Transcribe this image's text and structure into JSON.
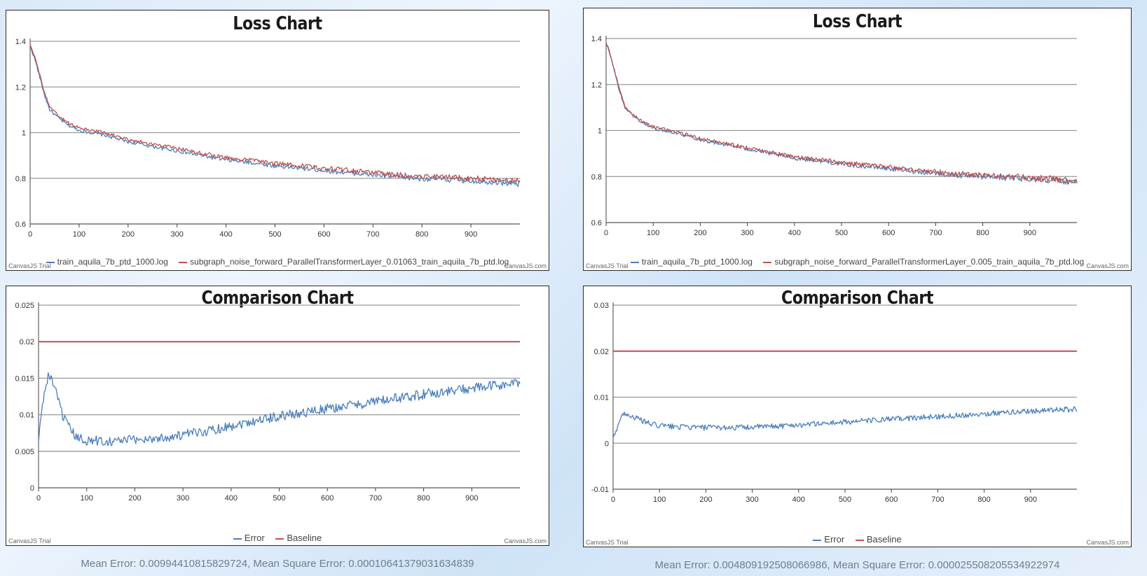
{
  "colors": {
    "blue": "#4a7ebb",
    "red": "#c0504d"
  },
  "panels": {
    "tl": {
      "title": "Loss Chart",
      "legend": [
        {
          "label": "train_aquila_7b_ptd_1000.log",
          "color": "#4a7ebb"
        },
        {
          "label": "subgraph_noise_forward_ParallelTransformerLayer_0.01063_train_aquila_7b_ptd.log",
          "color": "#c0504d"
        }
      ],
      "credit_left": "CanvasJS Trial",
      "credit_right": "CanvasJS.com"
    },
    "tr": {
      "title": "Loss Chart",
      "legend": [
        {
          "label": "train_aquila_7b_ptd_1000.log",
          "color": "#4a7ebb"
        },
        {
          "label": "subgraph_noise_forward_ParallelTransformerLayer_0.005_train_aquila_7b_ptd.log",
          "color": "#c0504d"
        }
      ],
      "credit_left": "CanvasJS Trial",
      "credit_right": "CanvasJS.com"
    },
    "bl": {
      "title": "Comparison Chart",
      "legend": [
        {
          "label": "Error",
          "color": "#4a7ebb"
        },
        {
          "label": "Baseline",
          "color": "#c0504d"
        }
      ],
      "credit_left": "CanvasJS Trial",
      "credit_right": "CanvasJS.com",
      "stats": "Mean Error: 0.00994410815829724, Mean Square Error: 0.00010641379031634839"
    },
    "br": {
      "title": "Comparison Chart",
      "legend": [
        {
          "label": "Error",
          "color": "#4a7ebb"
        },
        {
          "label": "Baseline",
          "color": "#c0504d"
        }
      ],
      "credit_left": "CanvasJS Trial",
      "credit_right": "CanvasJS.com",
      "stats": "Mean Error: 0.004809192508066986, Mean Square Error: 0.000025508205534922974"
    }
  },
  "chart_data": [
    {
      "id": "tl",
      "type": "line",
      "title": "Loss Chart",
      "xlim": [
        0,
        1000
      ],
      "ylim": [
        0.6,
        1.4
      ],
      "xticks": [
        0,
        100,
        200,
        300,
        400,
        500,
        600,
        700,
        800,
        900
      ],
      "yticks": [
        0.6,
        0.8,
        1,
        1.2,
        1.4
      ],
      "grid": true,
      "legend": "bottom",
      "series": [
        {
          "name": "train_aquila_7b_ptd_1000.log",
          "color": "#4a7ebb",
          "x": [
            0,
            10,
            20,
            30,
            40,
            60,
            80,
            100,
            150,
            200,
            250,
            300,
            350,
            400,
            450,
            500,
            550,
            600,
            650,
            700,
            750,
            800,
            850,
            900,
            950,
            1000
          ],
          "y": [
            1.38,
            1.32,
            1.24,
            1.16,
            1.1,
            1.06,
            1.03,
            1.01,
            0.99,
            0.96,
            0.94,
            0.92,
            0.9,
            0.88,
            0.87,
            0.855,
            0.845,
            0.835,
            0.825,
            0.815,
            0.805,
            0.8,
            0.795,
            0.79,
            0.785,
            0.775
          ]
        },
        {
          "name": "subgraph_noise_forward_ParallelTransformerLayer_0.01063_train_aquila_7b_ptd.log",
          "color": "#c0504d",
          "x": [
            0,
            10,
            20,
            30,
            40,
            60,
            80,
            100,
            150,
            200,
            250,
            300,
            350,
            400,
            450,
            500,
            550,
            600,
            650,
            700,
            750,
            800,
            850,
            900,
            950,
            1000
          ],
          "y": [
            1.39,
            1.33,
            1.25,
            1.17,
            1.11,
            1.07,
            1.04,
            1.02,
            1.0,
            0.97,
            0.95,
            0.93,
            0.91,
            0.89,
            0.88,
            0.865,
            0.855,
            0.845,
            0.835,
            0.825,
            0.815,
            0.81,
            0.805,
            0.8,
            0.795,
            0.785
          ]
        }
      ]
    },
    {
      "id": "tr",
      "type": "line",
      "title": "Loss Chart",
      "xlim": [
        0,
        1000
      ],
      "ylim": [
        0.6,
        1.4
      ],
      "xticks": [
        0,
        100,
        200,
        300,
        400,
        500,
        600,
        700,
        800,
        900
      ],
      "yticks": [
        0.6,
        0.8,
        1,
        1.2,
        1.4
      ],
      "grid": true,
      "legend": "bottom",
      "series": [
        {
          "name": "train_aquila_7b_ptd_1000.log",
          "color": "#4a7ebb",
          "x": [
            0,
            10,
            20,
            30,
            40,
            60,
            80,
            100,
            150,
            200,
            250,
            300,
            350,
            400,
            450,
            500,
            550,
            600,
            650,
            700,
            750,
            800,
            850,
            900,
            950,
            1000
          ],
          "y": [
            1.38,
            1.32,
            1.24,
            1.16,
            1.1,
            1.06,
            1.03,
            1.01,
            0.99,
            0.96,
            0.94,
            0.92,
            0.9,
            0.88,
            0.87,
            0.855,
            0.845,
            0.835,
            0.825,
            0.815,
            0.805,
            0.8,
            0.795,
            0.79,
            0.785,
            0.775
          ]
        },
        {
          "name": "subgraph_noise_forward_ParallelTransformerLayer_0.005_train_aquila_7b_ptd.log",
          "color": "#c0504d",
          "x": [
            0,
            10,
            20,
            30,
            40,
            60,
            80,
            100,
            150,
            200,
            250,
            300,
            350,
            400,
            450,
            500,
            550,
            600,
            650,
            700,
            750,
            800,
            850,
            900,
            950,
            1000
          ],
          "y": [
            1.385,
            1.325,
            1.245,
            1.165,
            1.105,
            1.065,
            1.035,
            1.015,
            0.995,
            0.965,
            0.945,
            0.925,
            0.905,
            0.885,
            0.875,
            0.86,
            0.85,
            0.84,
            0.83,
            0.82,
            0.81,
            0.805,
            0.8,
            0.795,
            0.79,
            0.78
          ]
        }
      ]
    },
    {
      "id": "bl",
      "type": "line",
      "title": "Comparison Chart",
      "xlim": [
        0,
        1000
      ],
      "ylim": [
        0,
        0.025
      ],
      "xticks": [
        0,
        100,
        200,
        300,
        400,
        500,
        600,
        700,
        800,
        900
      ],
      "yticks": [
        0,
        0.005,
        0.01,
        0.015,
        0.02,
        0.025
      ],
      "grid": true,
      "legend": "bottom",
      "series": [
        {
          "name": "Error",
          "color": "#4a7ebb",
          "x": [
            0,
            5,
            10,
            20,
            30,
            40,
            50,
            60,
            80,
            100,
            150,
            200,
            250,
            300,
            350,
            400,
            450,
            500,
            550,
            600,
            650,
            700,
            750,
            800,
            850,
            900,
            950,
            1000
          ],
          "y": [
            0.006,
            0.01,
            0.012,
            0.0155,
            0.0145,
            0.012,
            0.01,
            0.0085,
            0.0068,
            0.0065,
            0.0064,
            0.0066,
            0.0068,
            0.0072,
            0.0078,
            0.0085,
            0.0092,
            0.0098,
            0.0103,
            0.0108,
            0.0113,
            0.0118,
            0.0123,
            0.0128,
            0.0132,
            0.0136,
            0.014,
            0.0143
          ]
        },
        {
          "name": "Baseline",
          "color": "#c0504d",
          "x": [
            0,
            1000
          ],
          "y": [
            0.02,
            0.02
          ]
        }
      ]
    },
    {
      "id": "br",
      "type": "line",
      "title": "Comparison Chart",
      "xlim": [
        0,
        1000
      ],
      "ylim": [
        -0.01,
        0.03
      ],
      "xticks": [
        0,
        100,
        200,
        300,
        400,
        500,
        600,
        700,
        800,
        900
      ],
      "yticks": [
        -0.01,
        0,
        0.01,
        0.02,
        0.03
      ],
      "grid": true,
      "legend": "bottom",
      "series": [
        {
          "name": "Error",
          "color": "#4a7ebb",
          "x": [
            0,
            5,
            10,
            20,
            30,
            40,
            60,
            80,
            100,
            150,
            200,
            250,
            300,
            350,
            400,
            450,
            500,
            550,
            600,
            650,
            700,
            750,
            800,
            850,
            900,
            950,
            1000
          ],
          "y": [
            0.001,
            0.002,
            0.004,
            0.0062,
            0.0065,
            0.0058,
            0.005,
            0.0042,
            0.0038,
            0.0035,
            0.0034,
            0.0034,
            0.0035,
            0.0037,
            0.004,
            0.0043,
            0.0046,
            0.0049,
            0.0052,
            0.0055,
            0.0058,
            0.0061,
            0.0064,
            0.0067,
            0.007,
            0.0072,
            0.0074
          ]
        },
        {
          "name": "Baseline",
          "color": "#c0504d",
          "x": [
            0,
            1000
          ],
          "y": [
            0.02,
            0.02
          ]
        }
      ]
    }
  ]
}
